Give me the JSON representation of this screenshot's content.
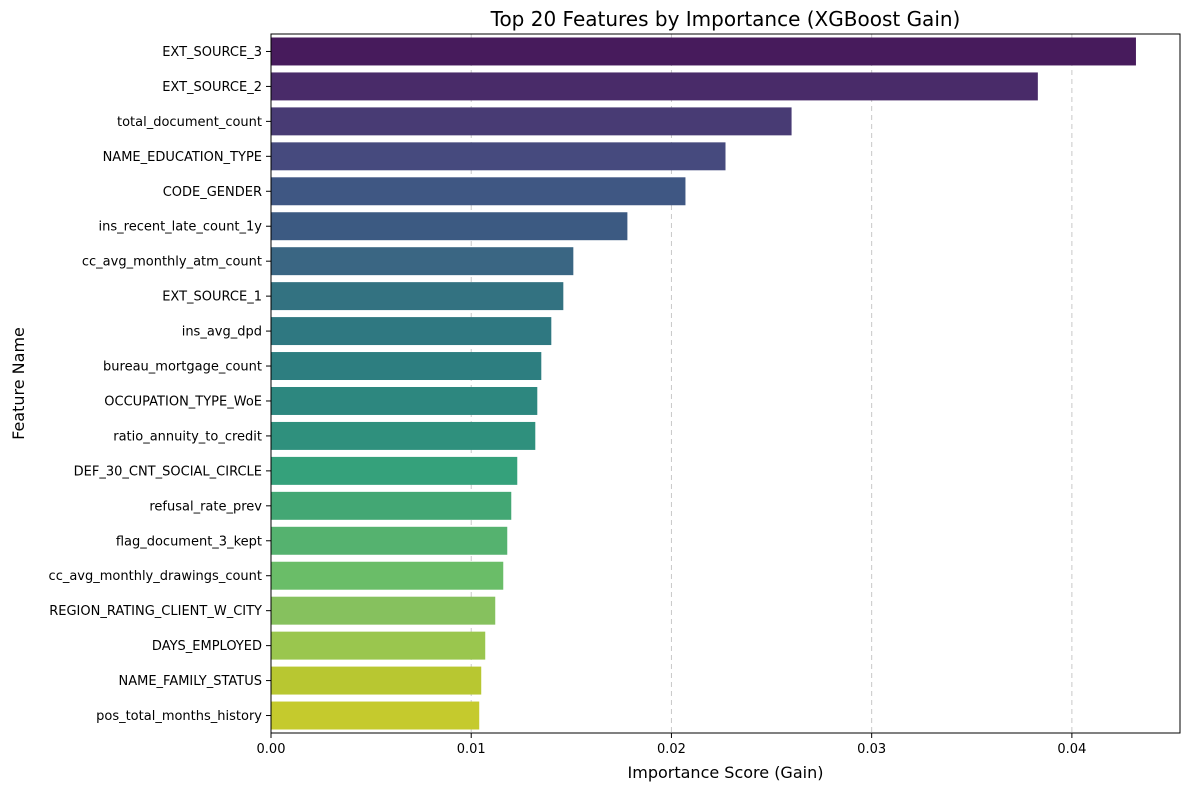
{
  "chart_data": {
    "type": "bar",
    "orientation": "horizontal",
    "title": "Top 20 Features by Importance (XGBoost Gain)",
    "xlabel": "Importance Score (Gain)",
    "ylabel": "Feature Name",
    "xlim": [
      0,
      0.0454
    ],
    "xticks": [
      0.0,
      0.01,
      0.02,
      0.03,
      0.04
    ],
    "xtick_labels": [
      "0.00",
      "0.01",
      "0.02",
      "0.03",
      "0.04"
    ],
    "grid": "x-dashed",
    "palette": "viridis",
    "categories": [
      "EXT_SOURCE_3",
      "EXT_SOURCE_2",
      "total_document_count",
      "NAME_EDUCATION_TYPE",
      "CODE_GENDER",
      "ins_recent_late_count_1y",
      "cc_avg_monthly_atm_count",
      "EXT_SOURCE_1",
      "ins_avg_dpd",
      "bureau_mortgage_count",
      "OCCUPATION_TYPE_WoE",
      "ratio_annuity_to_credit",
      "DEF_30_CNT_SOCIAL_CIRCLE",
      "refusal_rate_prev",
      "flag_document_3_kept",
      "cc_avg_monthly_drawings_count",
      "REGION_RATING_CLIENT_W_CITY",
      "DAYS_EMPLOYED",
      "NAME_FAMILY_STATUS",
      "pos_total_months_history"
    ],
    "values": [
      0.0432,
      0.0383,
      0.026,
      0.0227,
      0.0207,
      0.0178,
      0.0151,
      0.0146,
      0.014,
      0.0135,
      0.0133,
      0.0132,
      0.0123,
      0.012,
      0.0118,
      0.0116,
      0.0112,
      0.0107,
      0.0105,
      0.0104
    ],
    "colors": [
      "#471B5C",
      "#492B69",
      "#483B74",
      "#464A7E",
      "#3F5783",
      "#3C5A82",
      "#3A6683",
      "#337281",
      "#2F7881",
      "#2D7E80",
      "#2D877F",
      "#2F907D",
      "#35A17B",
      "#43A774",
      "#55B26F",
      "#6ABD68",
      "#86C15E",
      "#9AC64E",
      "#B8C731",
      "#C5CA2D"
    ]
  }
}
